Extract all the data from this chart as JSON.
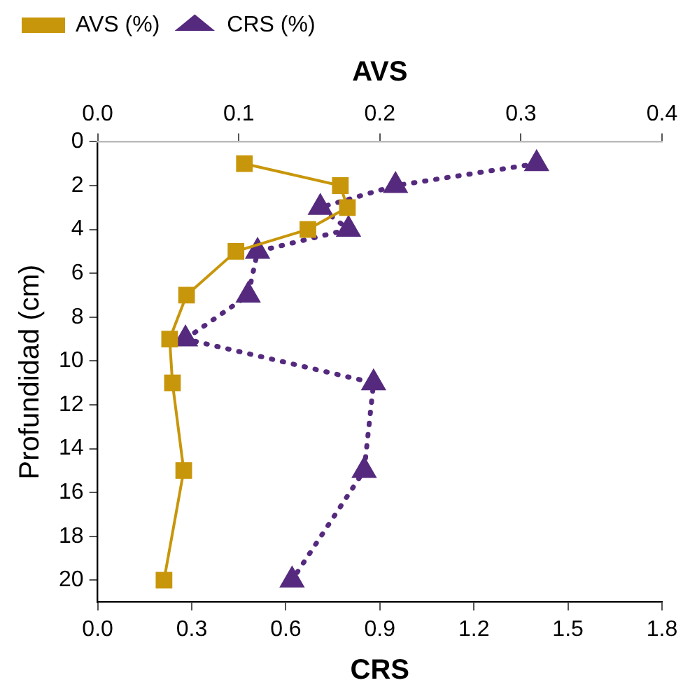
{
  "chart_data": {
    "type": "line",
    "x2label": "AVS",
    "xlabel": "CRS",
    "ylabel": "Profundidad (cm)",
    "xlim": [
      0,
      1.8
    ],
    "xticks": [
      {
        "value": 0,
        "label": "0.0"
      },
      {
        "value": 0.3,
        "label": "0.3"
      },
      {
        "value": 0.6,
        "label": "0.6"
      },
      {
        "value": 0.9,
        "label": "0.9"
      },
      {
        "value": 1.2,
        "label": "1.2"
      },
      {
        "value": 1.5,
        "label": "1.5"
      },
      {
        "value": 1.8,
        "label": "1.8"
      }
    ],
    "x2lim": [
      0,
      0.4
    ],
    "x2ticks": [
      {
        "value": 0,
        "label": "0.0"
      },
      {
        "value": 0.1,
        "label": "0.1"
      },
      {
        "value": 0.2,
        "label": "0.2"
      },
      {
        "value": 0.3,
        "label": "0.3"
      },
      {
        "value": 0.4,
        "label": "0.4"
      }
    ],
    "ylim": [
      21,
      0
    ],
    "yticks": [
      0,
      2,
      4,
      6,
      8,
      10,
      12,
      14,
      16,
      18,
      20
    ],
    "grid": false,
    "legend": "top left",
    "series": [
      {
        "name": "AVS (%)",
        "color": "#c8960a",
        "axis": "x2",
        "marker": "square",
        "line_style": "solid",
        "x": [
          0.104,
          0.172,
          0.177,
          0.149,
          0.098,
          0.063,
          0.051,
          0.053,
          0.061,
          0.047
        ],
        "values": [
          1,
          2,
          3,
          4,
          5,
          7,
          9,
          11,
          15,
          20
        ]
      },
      {
        "name": "CRS (%)",
        "color": "#552a7e",
        "marker": "triangle",
        "line_style": "dotted",
        "x": [
          1.4,
          0.95,
          0.71,
          0.8,
          0.51,
          0.48,
          0.28,
          0.88,
          0.85,
          0.62
        ],
        "values": [
          1,
          2,
          3,
          4,
          5,
          7,
          9,
          11,
          15,
          20
        ]
      }
    ]
  }
}
